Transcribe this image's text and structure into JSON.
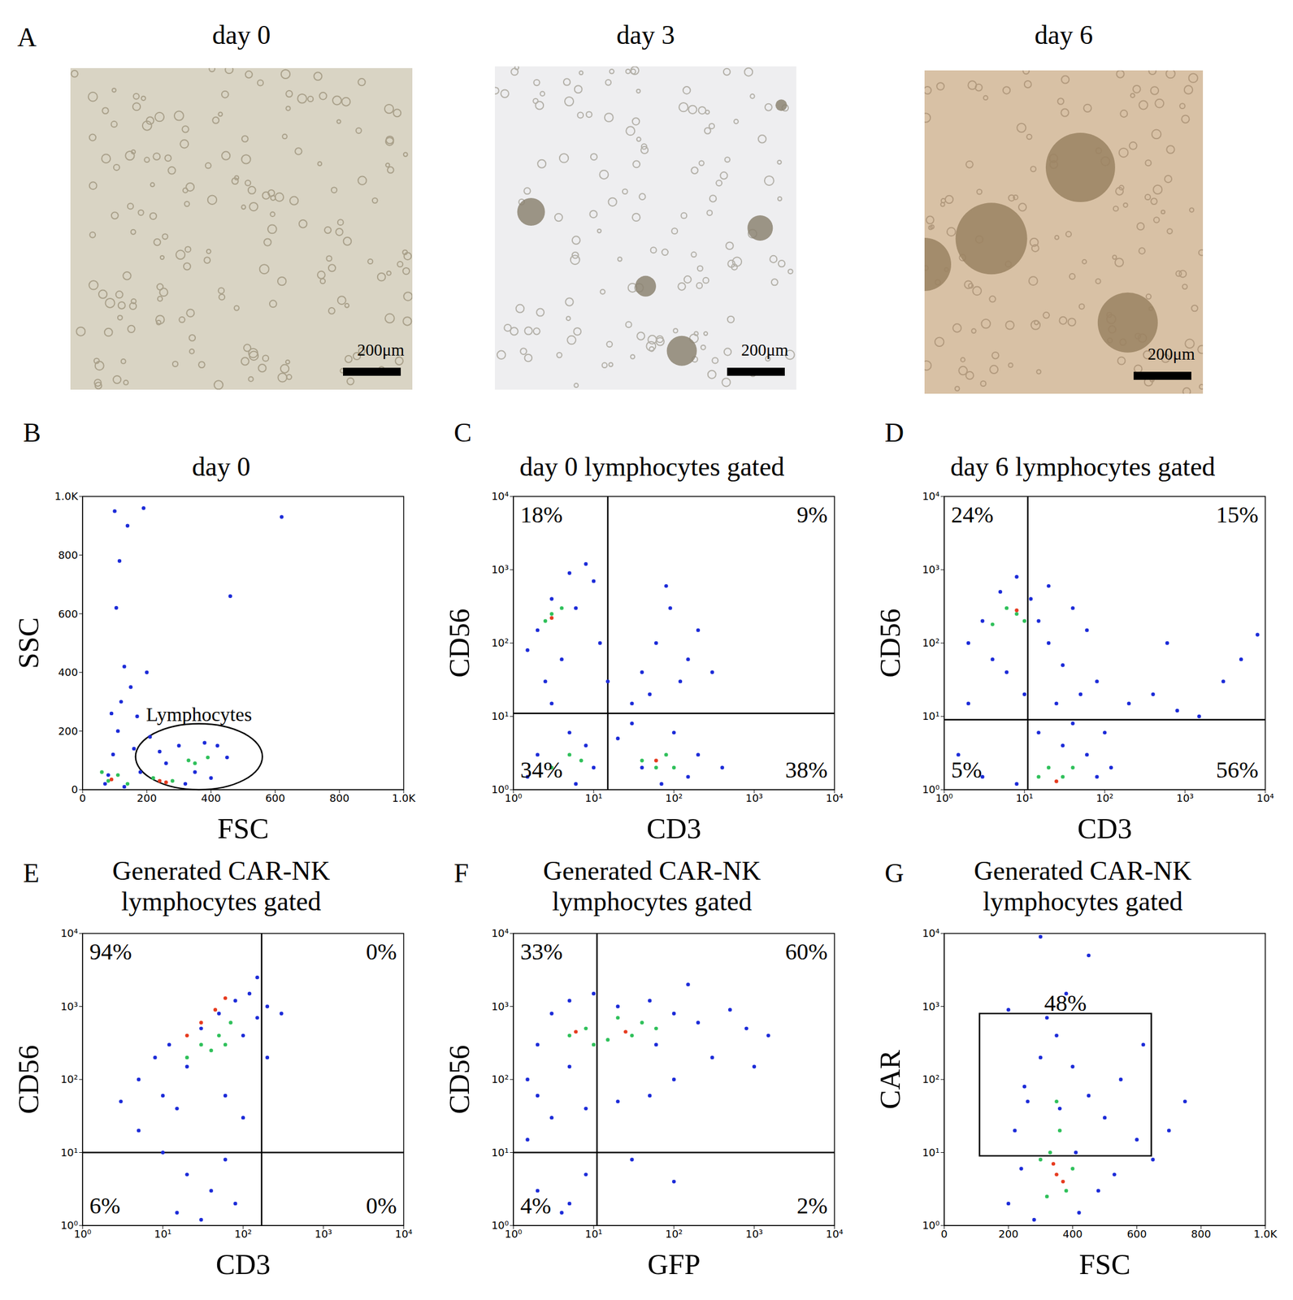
{
  "images": {
    "letter": "A",
    "panels": [
      {
        "title": "day 0",
        "scale_bar": "200μm"
      },
      {
        "title": "day 3",
        "scale_bar": "200μm"
      },
      {
        "title": "day 6",
        "scale_bar": "200μm"
      }
    ]
  },
  "chart_data": [
    {
      "letter": "B",
      "type": "scatter",
      "title": "day 0",
      "x_label": "FSC",
      "y_label": "SSC",
      "xlim": [
        0,
        1000
      ],
      "ylim": [
        0,
        1000
      ],
      "xticks": [
        0,
        200,
        400,
        600,
        800,
        {
          "value": 1000,
          "label": "1.0K"
        }
      ],
      "yticks": [
        0,
        200,
        400,
        600,
        800,
        {
          "value": 1000,
          "label": "1.0K"
        }
      ],
      "gate": {
        "label": "Lymphocytes",
        "shape": "ellipse",
        "x": [
          165,
          560
        ],
        "y": [
          0,
          225
        ]
      },
      "series": [
        {
          "color": "#1c2bd8",
          "x": [
            80,
            95,
            110,
            120,
            130,
            105,
            115,
            140,
            190,
            100,
            150,
            170,
            210,
            240,
            300,
            350,
            400,
            420,
            450,
            260,
            180,
            70,
            130,
            320,
            380,
            620,
            460,
            200,
            90,
            160
          ],
          "y": [
            50,
            120,
            200,
            300,
            420,
            620,
            780,
            900,
            960,
            950,
            350,
            250,
            180,
            130,
            150,
            60,
            40,
            150,
            110,
            90,
            60,
            20,
            10,
            20,
            160,
            930,
            660,
            400,
            260,
            140
          ]
        },
        {
          "color": "#2fc05a",
          "x": [
            80,
            110,
            140,
            220,
            280,
            350,
            390,
            330,
            60
          ],
          "y": [
            30,
            50,
            20,
            40,
            30,
            90,
            110,
            100,
            60
          ]
        },
        {
          "color": "#e63b1f",
          "x": [
            240,
            260,
            90
          ],
          "y": [
            30,
            25,
            35
          ]
        }
      ]
    },
    {
      "letter": "C",
      "type": "scatter",
      "title": "day 0 lymphocytes gated",
      "x_label": "CD3",
      "y_label": "CD56",
      "log": true,
      "xlim": [
        1,
        10000
      ],
      "ylim": [
        1,
        10000
      ],
      "xticks": [
        {
          "value": 1,
          "label": "10⁰"
        },
        {
          "value": 10,
          "label": "10¹"
        },
        {
          "value": 100,
          "label": "10²"
        },
        {
          "value": 1000,
          "label": "10³"
        },
        {
          "value": 10000,
          "label": "10⁴"
        }
      ],
      "yticks": [
        {
          "value": 1,
          "label": "10⁰"
        },
        {
          "value": 10,
          "label": "10¹"
        },
        {
          "value": 100,
          "label": "10²"
        },
        {
          "value": 1000,
          "label": "10³"
        },
        {
          "value": 10000,
          "label": "10⁴"
        }
      ],
      "quadrant_lines": {
        "x": 15,
        "y": 11
      },
      "quadrant_labels": {
        "upper_left": "18%",
        "upper_right": "9%",
        "lower_left": "34%",
        "lower_right": "38%"
      },
      "series": [
        {
          "color": "#1c2bd8",
          "x": [
            2,
            3,
            5,
            8,
            1.5,
            4,
            6,
            10,
            2.5,
            12,
            40,
            60,
            90,
            150,
            200,
            50,
            80,
            120,
            300,
            30,
            2,
            5,
            10,
            1.5,
            8,
            20,
            40,
            100,
            200,
            400,
            150,
            30,
            3,
            15,
            70,
            6
          ],
          "y": [
            150,
            400,
            900,
            1200,
            80,
            60,
            300,
            700,
            30,
            100,
            40,
            100,
            300,
            60,
            150,
            20,
            600,
            30,
            40,
            15,
            3,
            6,
            2,
            1.5,
            4,
            5,
            2,
            6,
            3,
            2,
            1.5,
            8,
            15,
            30,
            1.2,
            1.2
          ]
        },
        {
          "color": "#2fc05a",
          "x": [
            3,
            2.5,
            4,
            5,
            3,
            7,
            60,
            80,
            40,
            100
          ],
          "y": [
            250,
            200,
            300,
            3,
            2,
            2.5,
            2,
            3,
            2.5,
            2
          ]
        },
        {
          "color": "#e63b1f",
          "x": [
            3,
            60
          ],
          "y": [
            220,
            2.5
          ]
        }
      ]
    },
    {
      "letter": "D",
      "type": "scatter",
      "title": "day 6 lymphocytes gated",
      "x_label": "CD3",
      "y_label": "CD56",
      "log": true,
      "xlim": [
        1,
        10000
      ],
      "ylim": [
        1,
        10000
      ],
      "xticks": [
        {
          "value": 1,
          "label": "10⁰"
        },
        {
          "value": 10,
          "label": "10¹"
        },
        {
          "value": 100,
          "label": "10²"
        },
        {
          "value": 1000,
          "label": "10³"
        },
        {
          "value": 10000,
          "label": "10⁴"
        }
      ],
      "yticks": [
        {
          "value": 1,
          "label": "10⁰"
        },
        {
          "value": 10,
          "label": "10¹"
        },
        {
          "value": 100,
          "label": "10²"
        },
        {
          "value": 1000,
          "label": "10³"
        },
        {
          "value": 10000,
          "label": "10⁴"
        }
      ],
      "quadrant_lines": {
        "x": 11,
        "y": 9
      },
      "quadrant_labels": {
        "upper_left": "24%",
        "upper_right": "15%",
        "lower_left": "5%",
        "lower_right": "56%"
      },
      "series": [
        {
          "color": "#1c2bd8",
          "x": [
            3,
            2,
            5,
            8,
            12,
            4,
            6,
            15,
            20,
            30,
            40,
            60,
            80,
            25,
            50,
            10,
            2,
            1.5,
            3,
            15,
            30,
            60,
            80,
            100,
            120,
            40,
            8,
            200,
            400,
            800,
            3000,
            5000,
            8000,
            1500,
            600,
            20
          ],
          "y": [
            200,
            100,
            500,
            800,
            400,
            60,
            40,
            200,
            100,
            50,
            300,
            150,
            30,
            15,
            20,
            20,
            15,
            3,
            1.5,
            6,
            4,
            3,
            1.5,
            6,
            2,
            8,
            1.2,
            15,
            20,
            12,
            30,
            60,
            130,
            10,
            100,
            600
          ]
        },
        {
          "color": "#2fc05a",
          "x": [
            8,
            6,
            10,
            4,
            20,
            30,
            15,
            40
          ],
          "y": [
            250,
            300,
            200,
            180,
            2,
            1.5,
            1.5,
            2
          ]
        },
        {
          "color": "#e63b1f",
          "x": [
            25,
            8
          ],
          "y": [
            1.3,
            280
          ]
        }
      ]
    },
    {
      "letter": "E",
      "type": "scatter",
      "title": "Generated CAR-NK lymphocytes gated",
      "x_label": "CD3",
      "y_label": "CD56",
      "log": true,
      "xlim": [
        1,
        10000
      ],
      "ylim": [
        1,
        10000
      ],
      "xticks": [
        {
          "value": 1,
          "label": "10⁰"
        },
        {
          "value": 10,
          "label": "10¹"
        },
        {
          "value": 100,
          "label": "10²"
        },
        {
          "value": 1000,
          "label": "10³"
        },
        {
          "value": 10000,
          "label": "10⁴"
        }
      ],
      "yticks": [
        {
          "value": 1,
          "label": "10⁰"
        },
        {
          "value": 10,
          "label": "10¹"
        },
        {
          "value": 100,
          "label": "10²"
        },
        {
          "value": 1000,
          "label": "10³"
        },
        {
          "value": 10000,
          "label": "10⁴"
        }
      ],
      "quadrant_lines": {
        "x": 170,
        "y": 10
      },
      "quadrant_labels": {
        "upper_left": "94%",
        "upper_right": "0%",
        "lower_left": "6%",
        "lower_right": "0%"
      },
      "series": [
        {
          "color": "#1c2bd8",
          "x": [
            5,
            8,
            10,
            15,
            20,
            30,
            50,
            80,
            120,
            100,
            150,
            200,
            300,
            5,
            10,
            20,
            40,
            60,
            15,
            80,
            30,
            100,
            60,
            3,
            12,
            200,
            150
          ],
          "y": [
            100,
            200,
            60,
            40,
            150,
            500,
            800,
            1200,
            1500,
            400,
            700,
            1000,
            800,
            20,
            10,
            5,
            3,
            8,
            1.5,
            2,
            1.2,
            30,
            60,
            50,
            300,
            200,
            2500
          ]
        },
        {
          "color": "#2fc05a",
          "x": [
            20,
            30,
            50,
            40,
            70,
            60
          ],
          "y": [
            200,
            300,
            400,
            250,
            600,
            300
          ]
        },
        {
          "color": "#e63b1f",
          "x": [
            20,
            30,
            45,
            60
          ],
          "y": [
            400,
            600,
            900,
            1300
          ]
        }
      ]
    },
    {
      "letter": "F",
      "type": "scatter",
      "title": "Generated CAR-NK lymphocytes gated",
      "x_label": "GFP",
      "y_label": "CD56",
      "log": true,
      "xlim": [
        1,
        10000
      ],
      "ylim": [
        1,
        10000
      ],
      "xticks": [
        {
          "value": 1,
          "label": "10⁰"
        },
        {
          "value": 10,
          "label": "10¹"
        },
        {
          "value": 100,
          "label": "10²"
        },
        {
          "value": 1000,
          "label": "10³"
        },
        {
          "value": 10000,
          "label": "10⁴"
        }
      ],
      "yticks": [
        {
          "value": 1,
          "label": "10⁰"
        },
        {
          "value": 10,
          "label": "10¹"
        },
        {
          "value": 100,
          "label": "10²"
        },
        {
          "value": 1000,
          "label": "10³"
        },
        {
          "value": 10000,
          "label": "10⁴"
        }
      ],
      "quadrant_lines": {
        "x": 11,
        "y": 10
      },
      "quadrant_labels": {
        "upper_left": "33%",
        "upper_right": "60%",
        "lower_left": "4%",
        "lower_right": "2%"
      },
      "series": [
        {
          "color": "#1c2bd8",
          "x": [
            1.5,
            2,
            3,
            5,
            10,
            20,
            50,
            100,
            200,
            500,
            800,
            1500,
            300,
            100,
            50,
            20,
            8,
            3,
            1.5,
            2,
            5,
            8,
            4,
            30,
            100,
            1000,
            150,
            60,
            5,
            2
          ],
          "y": [
            100,
            300,
            800,
            1200,
            1500,
            1000,
            1200,
            800,
            600,
            900,
            500,
            400,
            200,
            100,
            60,
            50,
            40,
            30,
            15,
            3,
            2,
            5,
            1.5,
            8,
            4,
            150,
            2000,
            300,
            150,
            60
          ]
        },
        {
          "color": "#2fc05a",
          "x": [
            5,
            8,
            15,
            30,
            40,
            20,
            10,
            60
          ],
          "y": [
            400,
            500,
            350,
            400,
            600,
            700,
            300,
            500
          ]
        },
        {
          "color": "#e63b1f",
          "x": [
            6,
            25
          ],
          "y": [
            450,
            450
          ]
        }
      ]
    },
    {
      "letter": "G",
      "type": "scatter",
      "title": "Generated CAR-NK lymphocytes gated",
      "x_label": "FSC",
      "y_label": "CAR",
      "log": "y",
      "xlim": [
        0,
        1000
      ],
      "ylim": [
        1,
        10000
      ],
      "xticks": [
        0,
        200,
        400,
        600,
        800,
        {
          "value": 1000,
          "label": "1.0K"
        }
      ],
      "yticks": [
        {
          "value": 1,
          "label": "10⁰"
        },
        {
          "value": 10,
          "label": "10¹"
        },
        {
          "value": 100,
          "label": "10²"
        },
        {
          "value": 1000,
          "label": "10³"
        },
        {
          "value": 10000,
          "label": "10⁴"
        }
      ],
      "gate": {
        "label": "48%",
        "shape": "rectangle",
        "x": [
          110,
          645
        ],
        "y": [
          9,
          800
        ]
      },
      "series": [
        {
          "color": "#1c2bd8",
          "x": [
            200,
            220,
            250,
            300,
            350,
            400,
            450,
            500,
            550,
            600,
            650,
            700,
            280,
            420,
            480,
            320,
            380,
            450,
            300,
            260,
            360,
            410,
            240,
            530,
            750,
            620,
            200
          ],
          "y": [
            2,
            20,
            80,
            200,
            400,
            150,
            60,
            30,
            100,
            15,
            8,
            20,
            1.2,
            1.5,
            3,
            700,
            1500,
            5000,
            9000,
            50,
            40,
            10,
            6,
            5,
            50,
            300,
            900
          ]
        },
        {
          "color": "#2fc05a",
          "x": [
            330,
            360,
            300,
            400,
            350,
            380,
            320
          ],
          "y": [
            10,
            20,
            8,
            6,
            50,
            3,
            2.5
          ]
        },
        {
          "color": "#e63b1f",
          "x": [
            350,
            370,
            340
          ],
          "y": [
            5,
            4,
            7
          ]
        }
      ]
    }
  ]
}
